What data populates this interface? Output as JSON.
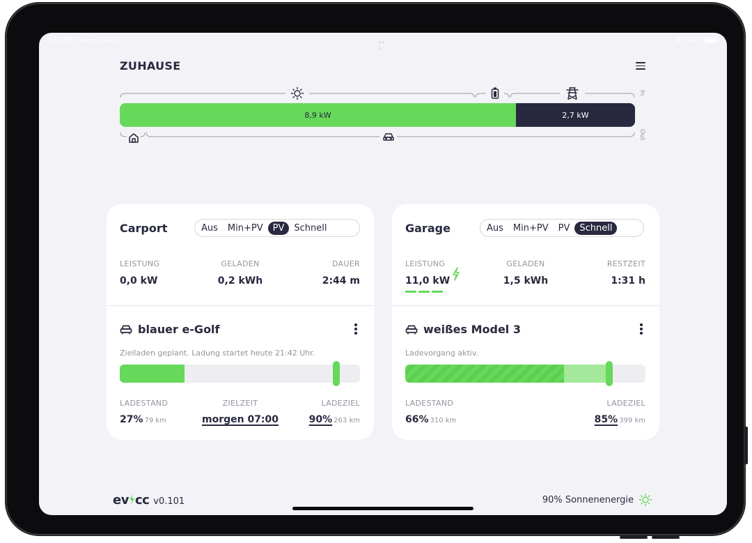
{
  "statusbar": {
    "time": "4:18 PM",
    "date": "Freitag 19. Aug",
    "battery": "100 %"
  },
  "header": {
    "title": "ZUHAUSE"
  },
  "energyflow": {
    "pv_label": "8,9 kW",
    "grid_label": "2,7 kW",
    "pv_share": 0.77,
    "in_label": "In",
    "out_label": "Out"
  },
  "loadpoints": [
    {
      "name": "Carport",
      "modes": [
        "Aus",
        "Min+PV",
        "PV",
        "Schnell"
      ],
      "active_mode": "PV",
      "metrics": [
        {
          "label": "LEISTUNG",
          "value": "0,0 kW"
        },
        {
          "label": "GELADEN",
          "value": "0,2 kWh"
        },
        {
          "label": "DAUER",
          "value": "2:44 m"
        }
      ],
      "vehicle": {
        "name": "blauer e-Golf",
        "status": "Zielladen geplant. Ladung startet heute 21:42 Uhr.",
        "soc": 27,
        "target": 90,
        "stand_label": "LADESTAND",
        "stand_value": "27%",
        "stand_range": "79 km",
        "time_label": "ZIELZEIT",
        "time_value": "morgen 07:00",
        "ziel_label": "LADEZIEL",
        "ziel_value": "90%",
        "ziel_range": "263 km"
      }
    },
    {
      "name": "Garage",
      "modes": [
        "Aus",
        "Min+PV",
        "PV",
        "Schnell"
      ],
      "active_mode": "Schnell",
      "metrics": [
        {
          "label": "LEISTUNG",
          "value": "11,0 kW"
        },
        {
          "label": "GELADEN",
          "value": "1,5 kWh"
        },
        {
          "label": "RESTZEIT",
          "value": "1:31 h"
        }
      ],
      "vehicle": {
        "name": "weißes Model 3",
        "status": "Ladevorgang aktiv.",
        "soc": 66,
        "target": 85,
        "stand_label": "LADESTAND",
        "stand_value": "66%",
        "stand_range": "310 km",
        "ziel_label": "LADEZIEL",
        "ziel_value": "85%",
        "ziel_range": "399 km"
      }
    }
  ],
  "footer": {
    "logo_prefix": "ev",
    "logo_suffix": "cc",
    "version": "v0.101",
    "solar_text": "90% Sonnenenergie"
  },
  "colors": {
    "accent": "#66d85a",
    "dark": "#28293e",
    "muted": "#93949e",
    "background": "#f3f3f7"
  },
  "icons": [
    "sun-icon",
    "battery-icon",
    "grid-icon",
    "home-icon",
    "car-icon",
    "bolt-icon",
    "menu-icon",
    "kebab-icon"
  ]
}
